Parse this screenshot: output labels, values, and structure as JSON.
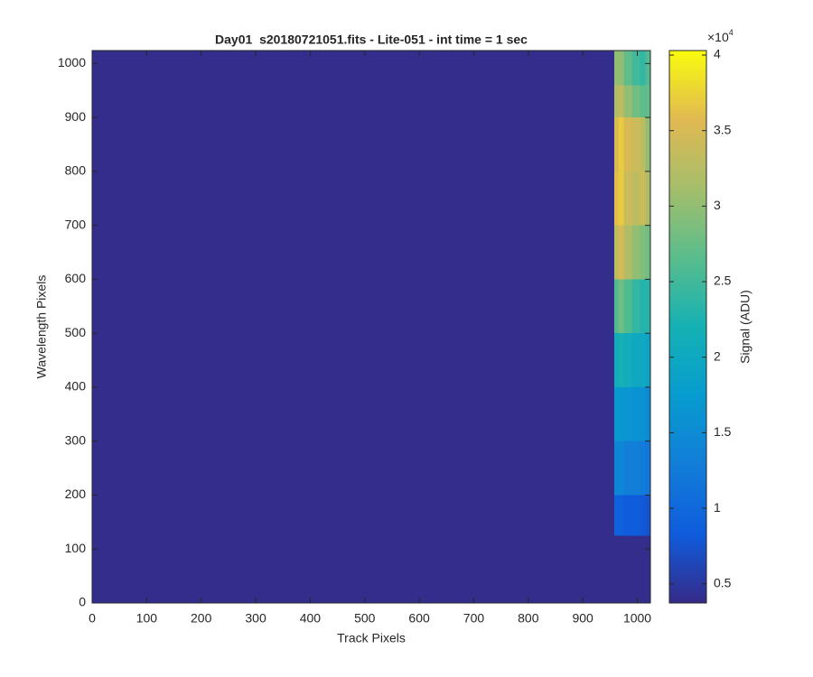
{
  "chart_data": {
    "type": "heatmap",
    "title": "Day01  s20180721051.fits - Lite-051 - int time = 1 sec",
    "xlabel": "Track Pixels",
    "ylabel": "Wavelength Pixels",
    "colorbar_label": "Signal (ADU)",
    "colorbar_multiplier": {
      "base": "×10",
      "exponent": "4"
    },
    "colormap": "parula",
    "x_edges": [
      0,
      958,
      965,
      975,
      990,
      1005,
      1015,
      1024
    ],
    "y_edges": [
      0,
      125,
      200,
      300,
      400,
      500,
      600,
      700,
      800,
      900,
      960,
      1024
    ],
    "values": [
      [
        4000,
        4000,
        4000,
        4000,
        4000,
        4000,
        4000
      ],
      [
        4000,
        9000,
        9000,
        8500,
        8500,
        8000,
        7500
      ],
      [
        4000,
        14000,
        14000,
        13000,
        13000,
        12500,
        12000
      ],
      [
        4000,
        17000,
        17000,
        16500,
        16000,
        16000,
        15000
      ],
      [
        4000,
        21000,
        22000,
        21000,
        20000,
        20000,
        19000
      ],
      [
        4000,
        26000,
        28000,
        26000,
        24000,
        23000,
        23000
      ],
      [
        4000,
        33000,
        35000,
        32000,
        30000,
        29000,
        28000
      ],
      [
        4000,
        36000,
        37000,
        34000,
        33000,
        34000,
        32000
      ],
      [
        4000,
        35000,
        37000,
        35000,
        34000,
        33000,
        30000
      ],
      [
        4000,
        32000,
        33000,
        30000,
        28000,
        27000,
        27000
      ],
      [
        4000,
        30000,
        30000,
        27000,
        25000,
        24000,
        26000
      ]
    ],
    "xlim": [
      0,
      1024
    ],
    "ylim": [
      0,
      1024
    ],
    "xticks": [
      0,
      100,
      200,
      300,
      400,
      500,
      600,
      700,
      800,
      900,
      1000
    ],
    "yticks": [
      0,
      100,
      200,
      300,
      400,
      500,
      600,
      700,
      800,
      900,
      1000
    ],
    "clim": [
      3730,
      40300
    ],
    "cticks": [
      {
        "value": 5000,
        "label": "0.5"
      },
      {
        "value": 10000,
        "label": "1"
      },
      {
        "value": 15000,
        "label": "1.5"
      },
      {
        "value": 20000,
        "label": "2"
      },
      {
        "value": 25000,
        "label": "2.5"
      },
      {
        "value": 30000,
        "label": "3"
      },
      {
        "value": 35000,
        "label": "3.5"
      },
      {
        "value": 40000,
        "label": "4"
      }
    ]
  }
}
